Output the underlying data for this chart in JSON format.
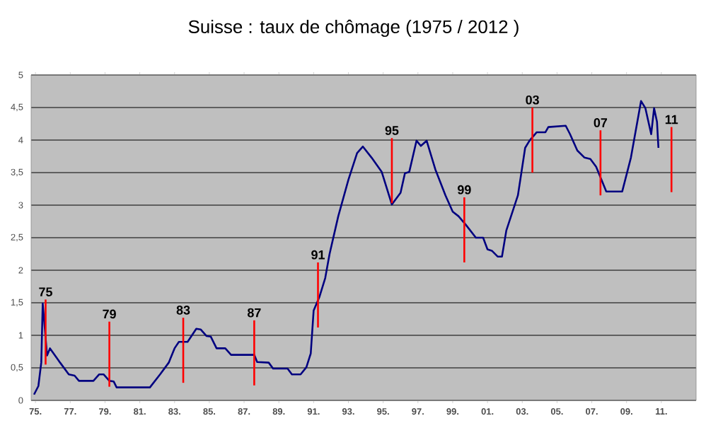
{
  "chart_data": {
    "type": "line",
    "title": "Suisse : taux de chômage (1975 / 2012 )",
    "x": [
      "1974-12",
      "1975-03",
      "1975-05",
      "1975-06",
      "1975-07",
      "1975-09",
      "1975-11",
      "1976-06",
      "1976-12",
      "1977-04",
      "1977-07",
      "1978-05",
      "1978-09",
      "1978-12",
      "1979-04",
      "1979-07",
      "1979-09",
      "1981-08",
      "1982-03",
      "1982-09",
      "1983-01",
      "1983-04",
      "1983-10",
      "1984-04",
      "1984-07",
      "1984-11",
      "1985-02",
      "1985-06",
      "1985-12",
      "1986-04",
      "1987-08",
      "1987-10",
      "1988-06",
      "1988-09",
      "1989-07",
      "1989-10",
      "1990-04",
      "1990-08",
      "1990-11",
      "1991-01",
      "1991-05",
      "1991-09",
      "1991-12",
      "1992-06",
      "1993-01",
      "1993-07",
      "1993-11",
      "1994-05",
      "1994-12",
      "1995-07",
      "1996-01",
      "1996-04",
      "1996-07",
      "1996-12",
      "1997-03",
      "1997-07",
      "1998-01",
      "1998-08",
      "1999-01",
      "1999-05",
      "1999-10",
      "2000-05",
      "2000-10",
      "2001-01",
      "2001-04",
      "2001-08",
      "2001-11",
      "2002-02",
      "2002-10",
      "2003-03",
      "2003-06",
      "2003-11",
      "2004-05",
      "2004-07",
      "2005-07",
      "2005-10",
      "2006-03",
      "2006-08",
      "2006-12",
      "2007-04",
      "2007-11",
      "2008-10",
      "2009-04",
      "2009-11",
      "2010-02",
      "2010-06",
      "2010-08",
      "2010-10",
      "2010-11"
    ],
    "series": [
      {
        "color": "#000080",
        "values": [
          0.09,
          0.22,
          0.58,
          1.49,
          1.23,
          0.69,
          0.8,
          0.58,
          0.4,
          0.38,
          0.3,
          0.3,
          0.4,
          0.4,
          0.3,
          0.29,
          0.2,
          0.2,
          0.4,
          0.58,
          0.8,
          0.9,
          0.9,
          1.1,
          1.09,
          0.99,
          0.98,
          0.8,
          0.8,
          0.7,
          0.7,
          0.59,
          0.58,
          0.49,
          0.49,
          0.4,
          0.4,
          0.51,
          0.72,
          1.38,
          1.59,
          1.88,
          2.25,
          2.83,
          3.39,
          3.8,
          3.9,
          3.73,
          3.51,
          3.01,
          3.19,
          3.49,
          3.51,
          3.99,
          3.91,
          3.99,
          3.55,
          3.15,
          2.9,
          2.83,
          2.7,
          2.5,
          2.5,
          2.32,
          2.3,
          2.21,
          2.21,
          2.61,
          3.15,
          3.88,
          3.99,
          4.12,
          4.12,
          4.2,
          4.22,
          4.09,
          3.84,
          3.73,
          3.71,
          3.59,
          3.21,
          3.21,
          3.73,
          4.6,
          4.49,
          4.09,
          4.49,
          4.28,
          3.88
        ]
      }
    ],
    "xlim": [
      "1974-10",
      "2013-01"
    ],
    "xticks": [
      {
        "value": "1975",
        "label": "75."
      },
      {
        "value": "1977",
        "label": "77."
      },
      {
        "value": "1979",
        "label": "79."
      },
      {
        "value": "1981",
        "label": "81."
      },
      {
        "value": "1983",
        "label": "83."
      },
      {
        "value": "1985",
        "label": "85."
      },
      {
        "value": "1987",
        "label": "87."
      },
      {
        "value": "1989",
        "label": "89."
      },
      {
        "value": "1991",
        "label": "91."
      },
      {
        "value": "1993",
        "label": "93."
      },
      {
        "value": "1995",
        "label": "95."
      },
      {
        "value": "1997",
        "label": "97."
      },
      {
        "value": "1999",
        "label": "99."
      },
      {
        "value": "2001",
        "label": "01."
      },
      {
        "value": "2003",
        "label": "03."
      },
      {
        "value": "2005",
        "label": "05."
      },
      {
        "value": "2007",
        "label": "07."
      },
      {
        "value": "2009",
        "label": "09."
      },
      {
        "value": "2011",
        "label": "11."
      }
    ],
    "ylim": [
      0,
      5
    ],
    "yticks": [
      0,
      {
        "value": 0.5,
        "label": "0,5"
      },
      1,
      {
        "value": 1.5,
        "label": "1,5"
      },
      2,
      {
        "value": 2.5,
        "label": "2,5"
      },
      3,
      {
        "value": 3.5,
        "label": "3,5"
      },
      4,
      {
        "value": 4.5,
        "label": "4,5"
      },
      5
    ],
    "grid": "y",
    "marker": "none",
    "line_style": "solid",
    "ref_lines": [
      {
        "axis": "x",
        "value": "1975-08",
        "label": "75",
        "color": "#ff0000"
      },
      {
        "axis": "x",
        "value": "1979-04",
        "label": "79",
        "color": "#ff0000"
      },
      {
        "axis": "x",
        "value": "1983-07",
        "label": "83",
        "color": "#ff0000"
      },
      {
        "axis": "x",
        "value": "1987-08",
        "label": "87",
        "color": "#ff0000"
      },
      {
        "axis": "x",
        "value": "1991-04",
        "label": "91",
        "color": "#ff0000"
      },
      {
        "axis": "x",
        "value": "1995-07",
        "label": "95",
        "color": "#ff0000"
      },
      {
        "axis": "x",
        "value": "1999-09",
        "label": "99",
        "color": "#ff0000"
      },
      {
        "axis": "x",
        "value": "2003-08",
        "label": "03",
        "color": "#ff0000"
      },
      {
        "axis": "x",
        "value": "2007-07",
        "label": "07",
        "color": "#ff0000"
      },
      {
        "axis": "x",
        "value": "2011-08",
        "label": "11",
        "color": "#ff0000"
      }
    ]
  }
}
